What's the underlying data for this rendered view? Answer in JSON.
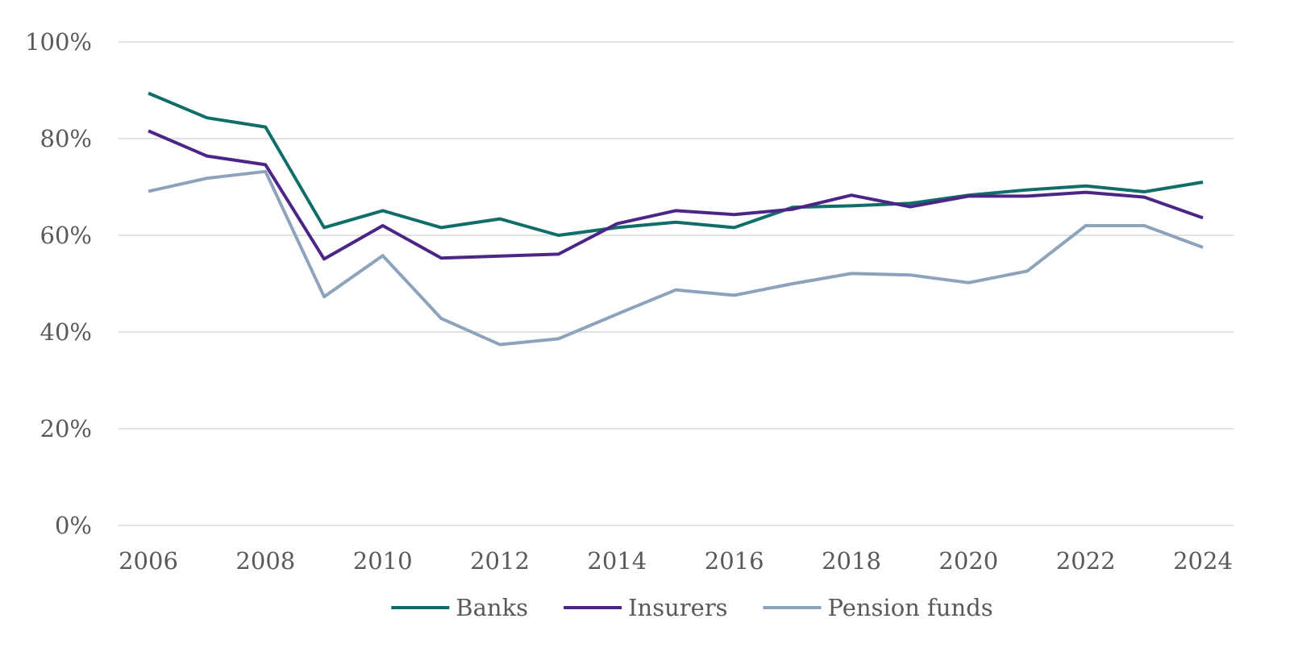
{
  "chart_data": {
    "type": "line",
    "title": "",
    "xlabel": "",
    "ylabel": "",
    "x": [
      2006,
      2007,
      2008,
      2009,
      2010,
      2011,
      2012,
      2013,
      2014,
      2015,
      2016,
      2017,
      2018,
      2019,
      2020,
      2021,
      2022,
      2023,
      2024
    ],
    "xticks": [
      "2006",
      "2008",
      "2010",
      "2012",
      "2014",
      "2016",
      "2018",
      "2020",
      "2022",
      "2024"
    ],
    "ylim": [
      0,
      100
    ],
    "yticks": [
      "0%",
      "20%",
      "40%",
      "60%",
      "80%",
      "100%"
    ],
    "grid": "horizontal",
    "legend_position": "bottom",
    "series": [
      {
        "name": "Banks",
        "color": "#0f6e6a",
        "values": [
          89.4,
          84.3,
          82.4,
          61.6,
          65.1,
          61.6,
          63.4,
          60.0,
          61.6,
          62.7,
          61.6,
          65.8,
          66.1,
          66.6,
          68.3,
          69.4,
          70.2,
          69.0,
          71.0
        ]
      },
      {
        "name": "Insurers",
        "color": "#4b2686",
        "values": [
          81.6,
          76.4,
          74.6,
          55.1,
          62.0,
          55.3,
          55.7,
          56.1,
          62.4,
          65.1,
          64.3,
          65.4,
          68.3,
          65.9,
          68.1,
          68.1,
          68.9,
          67.9,
          63.6
        ]
      },
      {
        "name": "Pension funds",
        "color": "#8ca3bb",
        "values": [
          69.1,
          71.8,
          73.2,
          47.3,
          55.8,
          42.8,
          37.4,
          38.6,
          43.7,
          48.7,
          47.6,
          50.0,
          52.1,
          51.8,
          50.2,
          52.6,
          62.0,
          62.0,
          57.5
        ]
      }
    ]
  }
}
